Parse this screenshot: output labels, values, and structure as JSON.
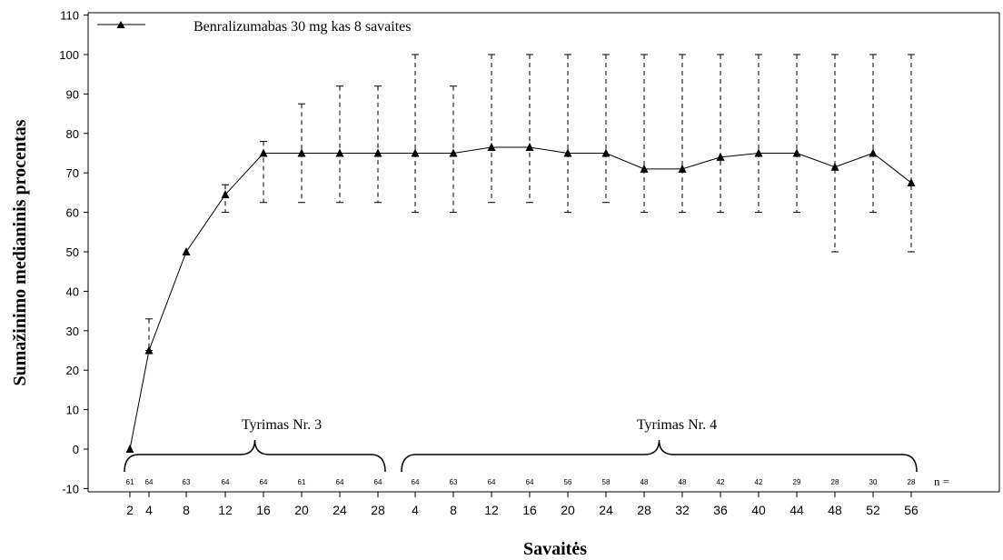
{
  "chart_data": {
    "type": "line",
    "xlabel": "Savaitės",
    "ylabel": "Sumažinimo medianinis procentas",
    "ylim": [
      -12,
      111
    ],
    "yticks": [
      -10,
      0,
      10,
      20,
      30,
      40,
      50,
      60,
      70,
      80,
      90,
      100,
      110
    ],
    "grid": false,
    "legend_position": "top-left",
    "categories": [
      "2",
      "4",
      "8",
      "12",
      "16",
      "20",
      "24",
      "28",
      "4",
      "8",
      "12",
      "16",
      "20",
      "24",
      "28",
      "32",
      "36",
      "40",
      "44",
      "48",
      "52",
      "56"
    ],
    "series": [
      {
        "name": "Benralizumabas 30 mg kas 8 savaites",
        "values": [
          0,
          25,
          50,
          64.5,
          75,
          75,
          75,
          75,
          75,
          75,
          76.5,
          76.5,
          75,
          75,
          71,
          71,
          74,
          75,
          75,
          71.5,
          75,
          67.5
        ],
        "upper": [
          0,
          33,
          50,
          67,
          78,
          87.5,
          92,
          92,
          100,
          92,
          100,
          100,
          100,
          100,
          100,
          100,
          100,
          100,
          100,
          100,
          100,
          100
        ],
        "lower": [
          0,
          25,
          50,
          60,
          62.5,
          62.5,
          62.5,
          62.5,
          60,
          60,
          62.5,
          62.5,
          60,
          62.5,
          60,
          60,
          60,
          60,
          60,
          50,
          60,
          50
        ]
      }
    ],
    "n_label": "n =",
    "n_values": [
      61,
      64,
      63,
      64,
      64,
      61,
      64,
      64,
      64,
      63,
      64,
      64,
      56,
      58,
      48,
      48,
      42,
      42,
      29,
      28,
      30,
      28
    ],
    "groups": [
      {
        "label": "Tyrimas Nr. 3",
        "from_index": 0,
        "to_index": 7
      },
      {
        "label": "Tyrimas Nr. 4",
        "from_index": 8,
        "to_index": 21
      }
    ]
  }
}
